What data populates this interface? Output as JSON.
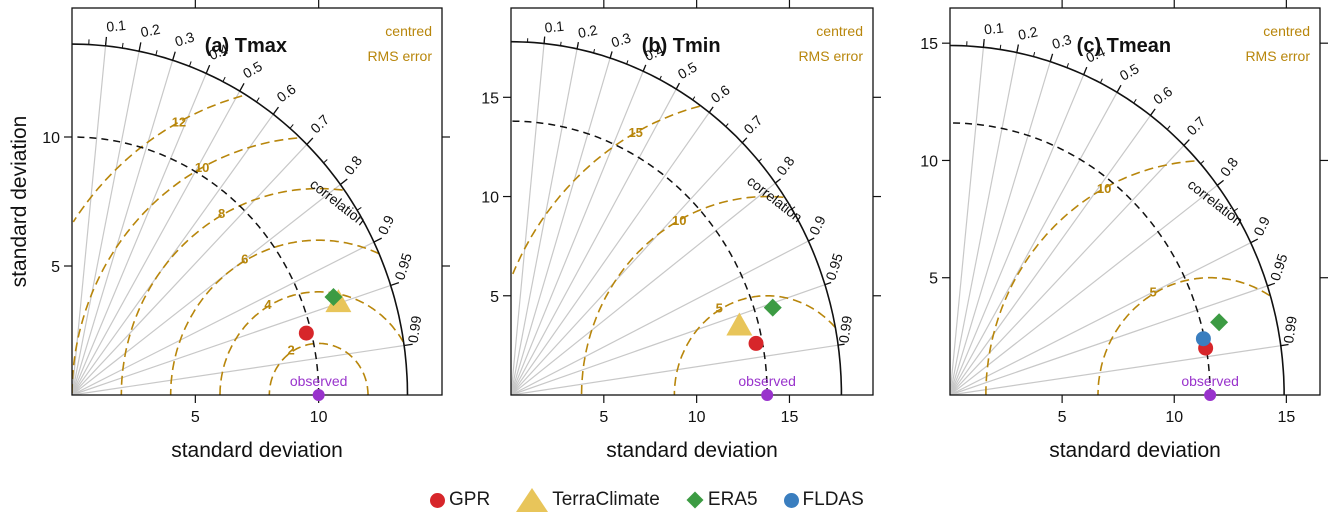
{
  "axis_labels": {
    "xlabel": "standard deviation",
    "ylabel": "standard deviation"
  },
  "annotations": {
    "correlation": "correlation",
    "centred": "centred",
    "rms_error": "RMS error",
    "observed": "observed"
  },
  "correlation_ticks": [
    "0.1",
    "0.2",
    "0.3",
    "0.4",
    "0.5",
    "0.6",
    "0.7",
    "0.8",
    "0.9",
    "0.95",
    "0.99"
  ],
  "colors": {
    "GPR": "#D7262A",
    "TerraClimate": "#E8C55A",
    "ERA5": "#3C9B43",
    "FLDAS": "#3A7EBF",
    "observed": "#9933CC",
    "rms_contour": "#B8860B",
    "corr_line": "#c8c8c8"
  },
  "legend": [
    {
      "name": "GPR",
      "shape": "circle",
      "color": "#D7262A"
    },
    {
      "name": "TerraClimate",
      "shape": "triangle",
      "color": "#E8C55A"
    },
    {
      "name": "ERA5",
      "shape": "diamond",
      "color": "#3C9B43"
    },
    {
      "name": "FLDAS",
      "shape": "circle",
      "color": "#3A7EBF"
    }
  ],
  "chart_data": [
    {
      "type": "scatter",
      "subtype": "taylor_diagram",
      "title": "(a) Tmax",
      "xlabel": "standard deviation",
      "ylabel": "standard deviation",
      "xlim": [
        0,
        15
      ],
      "ylim": [
        0,
        15
      ],
      "xticks": [
        5,
        10
      ],
      "yticks": [
        5,
        10
      ],
      "xtick_labels": [
        "5",
        "10"
      ],
      "ytick_labels": [
        "5",
        "10"
      ],
      "max_sd_arc": 13.6,
      "observed_sd": 10.0,
      "rms_contours": [
        2,
        4,
        6,
        8,
        10,
        12
      ],
      "rms_contour_labels": [
        "2",
        "4",
        "6",
        "8",
        "10",
        "12"
      ],
      "points": [
        {
          "name": "GPR",
          "x": 9.5,
          "y": 2.4
        },
        {
          "name": "TerraClimate",
          "x": 10.8,
          "y": 3.6
        },
        {
          "name": "ERA5",
          "x": 10.6,
          "y": 3.8
        }
      ]
    },
    {
      "type": "scatter",
      "subtype": "taylor_diagram",
      "title": "(b) Tmin",
      "xlabel": "standard deviation",
      "ylabel": "standard deviation",
      "xlim": [
        0,
        19.5
      ],
      "ylim": [
        0,
        19.5
      ],
      "xticks": [
        5,
        10,
        15
      ],
      "yticks": [
        5,
        10,
        15
      ],
      "xtick_labels": [
        "5",
        "10",
        "15"
      ],
      "ytick_labels": [
        "5",
        "10",
        "15"
      ],
      "max_sd_arc": 17.8,
      "observed_sd": 13.8,
      "rms_contours": [
        5,
        10,
        15
      ],
      "rms_contour_labels": [
        "5",
        "10",
        "15"
      ],
      "points": [
        {
          "name": "GPR",
          "x": 13.2,
          "y": 2.6
        },
        {
          "name": "TerraClimate",
          "x": 12.3,
          "y": 3.5
        },
        {
          "name": "ERA5",
          "x": 14.1,
          "y": 4.4
        }
      ]
    },
    {
      "type": "scatter",
      "subtype": "taylor_diagram",
      "title": "(c) Tmean",
      "xlabel": "standard deviation",
      "ylabel": "standard deviation",
      "xlim": [
        0,
        16.5
      ],
      "ylim": [
        0,
        16.5
      ],
      "xticks": [
        5,
        10,
        15
      ],
      "yticks": [
        5,
        10,
        15
      ],
      "xtick_labels": [
        "5",
        "10",
        "15"
      ],
      "ytick_labels": [
        "5",
        "10",
        "15"
      ],
      "max_sd_arc": 14.9,
      "observed_sd": 11.6,
      "rms_contours": [
        5,
        10
      ],
      "rms_contour_labels": [
        "5",
        "10"
      ],
      "points": [
        {
          "name": "GPR",
          "x": 11.4,
          "y": 2.0
        },
        {
          "name": "ERA5",
          "x": 12.0,
          "y": 3.1
        },
        {
          "name": "FLDAS",
          "x": 11.3,
          "y": 2.4
        }
      ]
    }
  ]
}
